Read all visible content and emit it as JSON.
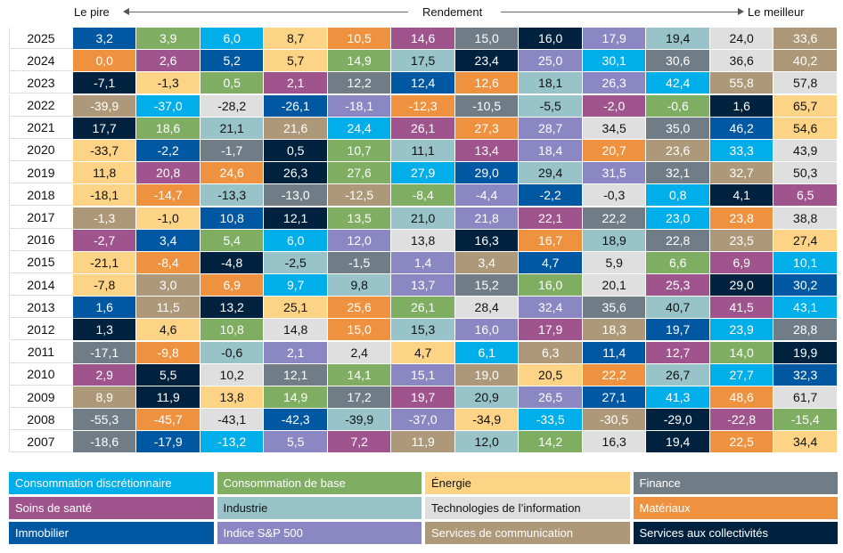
{
  "header": {
    "worst": "Le pire",
    "title": "Rendement",
    "best": "Le meilleur"
  },
  "sectors": {
    "CD": {
      "label": "Consommation discrétionnaire",
      "color": "#00aeea",
      "text": "#ffffff"
    },
    "CS": {
      "label": "Consommation de base",
      "color": "#7fae63",
      "text": "#ffffff"
    },
    "EN": {
      "label": "Énergie",
      "color": "#fdd385",
      "text": "#111111"
    },
    "FI": {
      "label": "Finance",
      "color": "#717d86",
      "text": "#ffffff"
    },
    "HC": {
      "label": "Soins de santé",
      "color": "#a0548d",
      "text": "#ffffff"
    },
    "IN": {
      "label": "Industrie",
      "color": "#98c3c9",
      "text": "#111111"
    },
    "IT": {
      "label": "Technologies de l’information",
      "color": "#dfdfe0",
      "text": "#111111"
    },
    "MA": {
      "label": "Matériaux",
      "color": "#ef9240",
      "text": "#ffffff"
    },
    "RE": {
      "label": "Immobilier",
      "color": "#0058a3",
      "text": "#ffffff"
    },
    "SP": {
      "label": "Indice S&P 500",
      "color": "#8b87c3",
      "text": "#ffffff"
    },
    "CO": {
      "label": "Services de communication",
      "color": "#ad9879",
      "text": "#ffffff"
    },
    "UT": {
      "label": "Services aux collectivités",
      "color": "#00223f",
      "text": "#ffffff"
    }
  },
  "legend_order": [
    "CD",
    "CS",
    "EN",
    "FI",
    "HC",
    "IN",
    "IT",
    "MA",
    "RE",
    "SP",
    "CO",
    "UT"
  ],
  "chart_data": {
    "type": "heatmap",
    "title": "Rendement",
    "x_direction": [
      "Le pire",
      "Le meilleur"
    ],
    "rows": [
      {
        "year": "2025",
        "values": [
          "3,2",
          "3,9",
          "6,0",
          "8,7",
          "10,5",
          "14,6",
          "15,0",
          "16,0",
          "17,9",
          "19,4",
          "24,0",
          "33,6"
        ],
        "sectors": [
          "RE",
          "CS",
          "CD",
          "EN",
          "MA",
          "HC",
          "FI",
          "UT",
          "SP",
          "IN",
          "IT",
          "CO"
        ]
      },
      {
        "year": "2024",
        "values": [
          "0,0",
          "2,6",
          "5,2",
          "5,7",
          "14,9",
          "17,5",
          "23,4",
          "25,0",
          "30,1",
          "30,6",
          "36,6",
          "40,2"
        ],
        "sectors": [
          "MA",
          "HC",
          "RE",
          "EN",
          "CS",
          "IN",
          "UT",
          "SP",
          "CD",
          "FI",
          "IT",
          "CO"
        ]
      },
      {
        "year": "2023",
        "values": [
          "-7,1",
          "-1,3",
          "0,5",
          "2,1",
          "12,2",
          "12,4",
          "12,6",
          "18,1",
          "26,3",
          "42,4",
          "55,8",
          "57,8"
        ],
        "sectors": [
          "UT",
          "EN",
          "CS",
          "HC",
          "FI",
          "RE",
          "MA",
          "IN",
          "SP",
          "CD",
          "CO",
          "IT"
        ]
      },
      {
        "year": "2022",
        "values": [
          "-39,9",
          "-37,0",
          "-28,2",
          "-26,1",
          "-18,1",
          "-12,3",
          "-10,5",
          "-5,5",
          "-2,0",
          "-0,6",
          "1,6",
          "65,7"
        ],
        "sectors": [
          "CO",
          "CD",
          "IT",
          "RE",
          "SP",
          "MA",
          "FI",
          "IN",
          "HC",
          "CS",
          "UT",
          "EN"
        ]
      },
      {
        "year": "2021",
        "values": [
          "17,7",
          "18,6",
          "21,1",
          "21,6",
          "24,4",
          "26,1",
          "27,3",
          "28,7",
          "34,5",
          "35,0",
          "46,2",
          "54,6"
        ],
        "sectors": [
          "UT",
          "CS",
          "IN",
          "CO",
          "CD",
          "HC",
          "MA",
          "SP",
          "IT",
          "FI",
          "RE",
          "EN"
        ]
      },
      {
        "year": "2020",
        "values": [
          "-33,7",
          "-2,2",
          "-1,7",
          "0,5",
          "10,7",
          "11,1",
          "13,4",
          "18,4",
          "20,7",
          "23,6",
          "33,3",
          "43,9"
        ],
        "sectors": [
          "EN",
          "RE",
          "FI",
          "UT",
          "CS",
          "IN",
          "HC",
          "SP",
          "MA",
          "CO",
          "CD",
          "IT"
        ]
      },
      {
        "year": "2019",
        "values": [
          "11,8",
          "20,8",
          "24,6",
          "26,3",
          "27,6",
          "27,9",
          "29,0",
          "29,4",
          "31,5",
          "32,1",
          "32,7",
          "50,3"
        ],
        "sectors": [
          "EN",
          "HC",
          "MA",
          "UT",
          "CS",
          "CD",
          "RE",
          "IN",
          "SP",
          "FI",
          "CO",
          "IT"
        ]
      },
      {
        "year": "2018",
        "values": [
          "-18,1",
          "-14,7",
          "-13,3",
          "-13,0",
          "-12,5",
          "-8,4",
          "-4,4",
          "-2,2",
          "-0,3",
          "0,8",
          "4,1",
          "6,5"
        ],
        "sectors": [
          "EN",
          "MA",
          "IN",
          "FI",
          "CO",
          "CS",
          "SP",
          "RE",
          "IT",
          "CD",
          "UT",
          "HC"
        ]
      },
      {
        "year": "2017",
        "values": [
          "-1,3",
          "-1,0",
          "10,8",
          "12,1",
          "13,5",
          "21,0",
          "21,8",
          "22,1",
          "22,2",
          "23,0",
          "23,8",
          "38,8"
        ],
        "sectors": [
          "CO",
          "EN",
          "RE",
          "UT",
          "CS",
          "IN",
          "SP",
          "HC",
          "FI",
          "CD",
          "MA",
          "IT"
        ]
      },
      {
        "year": "2016",
        "values": [
          "-2,7",
          "3,4",
          "5,4",
          "6,0",
          "12,0",
          "13,8",
          "16,3",
          "16,7",
          "18,9",
          "22,8",
          "23,5",
          "27,4"
        ],
        "sectors": [
          "HC",
          "RE",
          "CS",
          "CD",
          "SP",
          "IT",
          "UT",
          "MA",
          "IN",
          "FI",
          "CO",
          "EN"
        ]
      },
      {
        "year": "2015",
        "values": [
          "-21,1",
          "-8,4",
          "-4,8",
          "-2,5",
          "-1,5",
          "1,4",
          "3,4",
          "4,7",
          "5,9",
          "6,6",
          "6,9",
          "10,1"
        ],
        "sectors": [
          "EN",
          "MA",
          "UT",
          "IN",
          "FI",
          "SP",
          "CO",
          "RE",
          "IT",
          "CS",
          "HC",
          "CD"
        ]
      },
      {
        "year": "2014",
        "values": [
          "-7,8",
          "3,0",
          "6,9",
          "9,7",
          "9,8",
          "13,7",
          "15,2",
          "16,0",
          "20,1",
          "25,3",
          "29,0",
          "30,2"
        ],
        "sectors": [
          "EN",
          "CO",
          "MA",
          "CD",
          "IN",
          "SP",
          "FI",
          "CS",
          "IT",
          "HC",
          "UT",
          "RE"
        ]
      },
      {
        "year": "2013",
        "values": [
          "1,6",
          "11,5",
          "13,2",
          "25,1",
          "25,6",
          "26,1",
          "28,4",
          "32,4",
          "35,6",
          "40,7",
          "41,5",
          "43,1"
        ],
        "sectors": [
          "RE",
          "CO",
          "UT",
          "EN",
          "MA",
          "CS",
          "IT",
          "SP",
          "FI",
          "IN",
          "HC",
          "CD"
        ]
      },
      {
        "year": "2012",
        "values": [
          "1,3",
          "4,6",
          "10,8",
          "14,8",
          "15,0",
          "15,3",
          "16,0",
          "17,9",
          "18,3",
          "19,7",
          "23,9",
          "28,8"
        ],
        "sectors": [
          "UT",
          "EN",
          "CS",
          "IT",
          "MA",
          "IN",
          "SP",
          "HC",
          "CO",
          "RE",
          "CD",
          "FI"
        ]
      },
      {
        "year": "2011",
        "values": [
          "-17,1",
          "-9,8",
          "-0,6",
          "2,1",
          "2,4",
          "4,7",
          "6,1",
          "6,3",
          "11,4",
          "12,7",
          "14,0",
          "19,9"
        ],
        "sectors": [
          "FI",
          "MA",
          "IN",
          "SP",
          "IT",
          "EN",
          "CD",
          "CO",
          "RE",
          "HC",
          "CS",
          "UT"
        ]
      },
      {
        "year": "2010",
        "values": [
          "2,9",
          "5,5",
          "10,2",
          "12,1",
          "14,1",
          "15,1",
          "19,0",
          "20,5",
          "22,2",
          "26,7",
          "27,7",
          "32,3"
        ],
        "sectors": [
          "HC",
          "UT",
          "IT",
          "FI",
          "CS",
          "SP",
          "CO",
          "EN",
          "MA",
          "IN",
          "CD",
          "RE"
        ]
      },
      {
        "year": "2009",
        "values": [
          "8,9",
          "11,9",
          "13,8",
          "14,9",
          "17,2",
          "19,7",
          "20,9",
          "26,5",
          "27,1",
          "41,3",
          "48,6",
          "61,7"
        ],
        "sectors": [
          "CO",
          "UT",
          "EN",
          "CS",
          "FI",
          "HC",
          "IN",
          "SP",
          "RE",
          "CD",
          "MA",
          "IT"
        ]
      },
      {
        "year": "2008",
        "values": [
          "-55,3",
          "-45,7",
          "-43,1",
          "-42,3",
          "-39,9",
          "-37,0",
          "-34,9",
          "-33,5",
          "-30,5",
          "-29,0",
          "-22,8",
          "-15,4"
        ],
        "sectors": [
          "FI",
          "MA",
          "IT",
          "RE",
          "IN",
          "SP",
          "EN",
          "CD",
          "CO",
          "UT",
          "HC",
          "CS"
        ]
      },
      {
        "year": "2007",
        "values": [
          "-18,6",
          "-17,9",
          "-13,2",
          "5,5",
          "7,2",
          "11,9",
          "12,0",
          "14,2",
          "16,3",
          "19,4",
          "22,5",
          "34,4"
        ],
        "sectors": [
          "FI",
          "RE",
          "CD",
          "SP",
          "HC",
          "CO",
          "IN",
          "CS",
          "IT",
          "UT",
          "MA",
          "EN"
        ]
      }
    ]
  }
}
